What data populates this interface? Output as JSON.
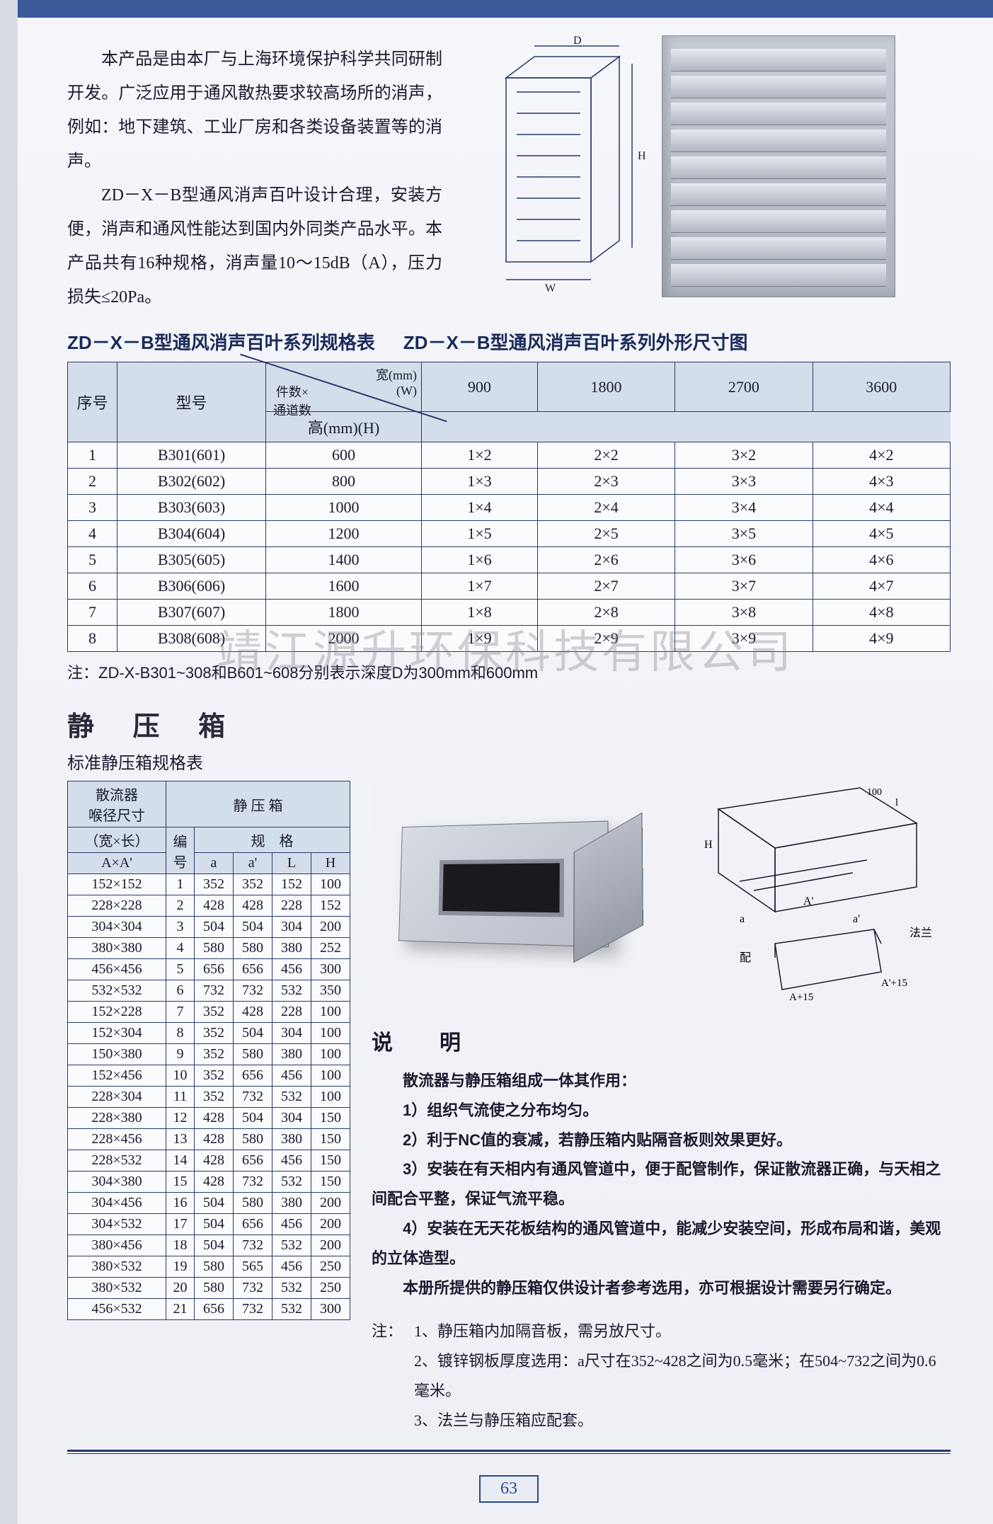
{
  "intro": {
    "p1": "本产品是由本厂与上海环境保护科学共同研制开发。广泛应用于通风散热要求较高场所的消声，例如：地下建筑、工业厂房和各类设备装置等的消声。",
    "p2": "ZD－X－B型通风消声百叶设计合理，安装方便，消声和通风性能达到国内外同类产品水平。本产品共有16种规格，消声量10～15dB（A），压力损失≤20Pa。"
  },
  "title1": "ZD－X－B型通风消声百叶系列规格表",
  "title2": "ZD－X－B型通风消声百叶系列外形尺寸图",
  "diagram_labels": {
    "D": "D",
    "H": "H",
    "W": "W"
  },
  "table1": {
    "head": {
      "seq": "序号",
      "model": "型号",
      "diag_tr": "宽(mm)\n(W)",
      "diag_mid": "件数×\n通道数",
      "diag_bot": "高(mm)(H)",
      "cols": [
        "900",
        "1800",
        "2700",
        "3600"
      ]
    },
    "rows": [
      {
        "seq": "1",
        "model": "B301(601)",
        "h": "600",
        "c": [
          "1×2",
          "2×2",
          "3×2",
          "4×2"
        ]
      },
      {
        "seq": "2",
        "model": "B302(602)",
        "h": "800",
        "c": [
          "1×3",
          "2×3",
          "3×3",
          "4×3"
        ]
      },
      {
        "seq": "3",
        "model": "B303(603)",
        "h": "1000",
        "c": [
          "1×4",
          "2×4",
          "3×4",
          "4×4"
        ]
      },
      {
        "seq": "4",
        "model": "B304(604)",
        "h": "1200",
        "c": [
          "1×5",
          "2×5",
          "3×5",
          "4×5"
        ]
      },
      {
        "seq": "5",
        "model": "B305(605)",
        "h": "1400",
        "c": [
          "1×6",
          "2×6",
          "3×6",
          "4×6"
        ]
      },
      {
        "seq": "6",
        "model": "B306(606)",
        "h": "1600",
        "c": [
          "1×7",
          "2×7",
          "3×7",
          "4×7"
        ]
      },
      {
        "seq": "7",
        "model": "B307(607)",
        "h": "1800",
        "c": [
          "1×8",
          "2×8",
          "3×8",
          "4×8"
        ]
      },
      {
        "seq": "8",
        "model": "B308(608)",
        "h": "2000",
        "c": [
          "1×9",
          "2×9",
          "3×9",
          "4×9"
        ]
      }
    ],
    "note": "注：ZD-X-B301~308和B601~608分别表示深度D为300mm和600mm"
  },
  "watermark": "靖江源升环保科技有限公司",
  "section2": {
    "title": "静 压 箱",
    "subtitle": "标准静压箱规格表",
    "table_head": {
      "group1": "散流器\n喉径尺寸",
      "group2": "静 压 箱",
      "wl": "（宽×长）",
      "bh": "编号",
      "spec": "规　格",
      "AA": "A×A'",
      "a": "a",
      "a2": "a'",
      "L": "L",
      "H": "H"
    },
    "rows": [
      {
        "d": "152×152",
        "n": "1",
        "v": [
          "352",
          "352",
          "152",
          "100"
        ]
      },
      {
        "d": "228×228",
        "n": "2",
        "v": [
          "428",
          "428",
          "228",
          "152"
        ]
      },
      {
        "d": "304×304",
        "n": "3",
        "v": [
          "504",
          "504",
          "304",
          "200"
        ]
      },
      {
        "d": "380×380",
        "n": "4",
        "v": [
          "580",
          "580",
          "380",
          "252"
        ]
      },
      {
        "d": "456×456",
        "n": "5",
        "v": [
          "656",
          "656",
          "456",
          "300"
        ]
      },
      {
        "d": "532×532",
        "n": "6",
        "v": [
          "732",
          "732",
          "532",
          "350"
        ]
      },
      {
        "d": "152×228",
        "n": "7",
        "v": [
          "352",
          "428",
          "228",
          "100"
        ]
      },
      {
        "d": "152×304",
        "n": "8",
        "v": [
          "352",
          "504",
          "304",
          "100"
        ]
      },
      {
        "d": "150×380",
        "n": "9",
        "v": [
          "352",
          "580",
          "380",
          "100"
        ]
      },
      {
        "d": "152×456",
        "n": "10",
        "v": [
          "352",
          "656",
          "456",
          "100"
        ]
      },
      {
        "d": "228×304",
        "n": "11",
        "v": [
          "352",
          "732",
          "532",
          "100"
        ]
      },
      {
        "d": "228×380",
        "n": "12",
        "v": [
          "428",
          "504",
          "304",
          "150"
        ]
      },
      {
        "d": "228×456",
        "n": "13",
        "v": [
          "428",
          "580",
          "380",
          "150"
        ]
      },
      {
        "d": "228×532",
        "n": "14",
        "v": [
          "428",
          "656",
          "456",
          "150"
        ]
      },
      {
        "d": "304×380",
        "n": "15",
        "v": [
          "428",
          "732",
          "532",
          "150"
        ]
      },
      {
        "d": "304×456",
        "n": "16",
        "v": [
          "504",
          "580",
          "380",
          "200"
        ]
      },
      {
        "d": "304×532",
        "n": "17",
        "v": [
          "504",
          "656",
          "456",
          "200"
        ]
      },
      {
        "d": "380×456",
        "n": "18",
        "v": [
          "504",
          "732",
          "532",
          "200"
        ]
      },
      {
        "d": "380×532",
        "n": "19",
        "v": [
          "580",
          "565",
          "456",
          "250"
        ]
      },
      {
        "d": "380×532",
        "n": "20",
        "v": [
          "580",
          "732",
          "532",
          "250"
        ]
      },
      {
        "d": "456×532",
        "n": "21",
        "v": [
          "656",
          "732",
          "532",
          "300"
        ]
      }
    ],
    "diagram_labels": {
      "H": "H",
      "A": "A",
      "a": "a",
      "falan": "法兰",
      "pei": "配",
      "ap15a": "A+15",
      "ap15b": "A'+15",
      "l": "l",
      "hundred": "100"
    },
    "desc_title": "说　明",
    "desc": {
      "lead": "散流器与静压箱组成一体其作用：",
      "i1": "1）组织气流使之分布均匀。",
      "i2": "2）利于NC值的衰减，若静压箱内贴隔音板则效果更好。",
      "i3": "3）安装在有天相内有通风管道中，便于配管制作，保证散流器正确，与天相之间配合平整，保证气流平稳。",
      "i4": "4）安装在无天花板结构的通风管道中，能减少安装空间，形成布局和谐，美观的立体造型。",
      "tail": "本册所提供的静压箱仅供设计者参考选用，亦可根据设计需要另行确定。"
    },
    "notes": {
      "lbl": "注：",
      "n1": "1、静压箱内加隔音板，需另放尺寸。",
      "n2": "2、镀锌钢板厚度选用：a尺寸在352~428之间为0.5毫米；在504~732之间为0.6毫米。",
      "n3": "3、法兰与静压箱应配套。"
    }
  },
  "page_number": "63",
  "colors": {
    "border": "#2a3a6a",
    "header_bg": "#d4ddea",
    "accent": "#3a5a9a"
  }
}
